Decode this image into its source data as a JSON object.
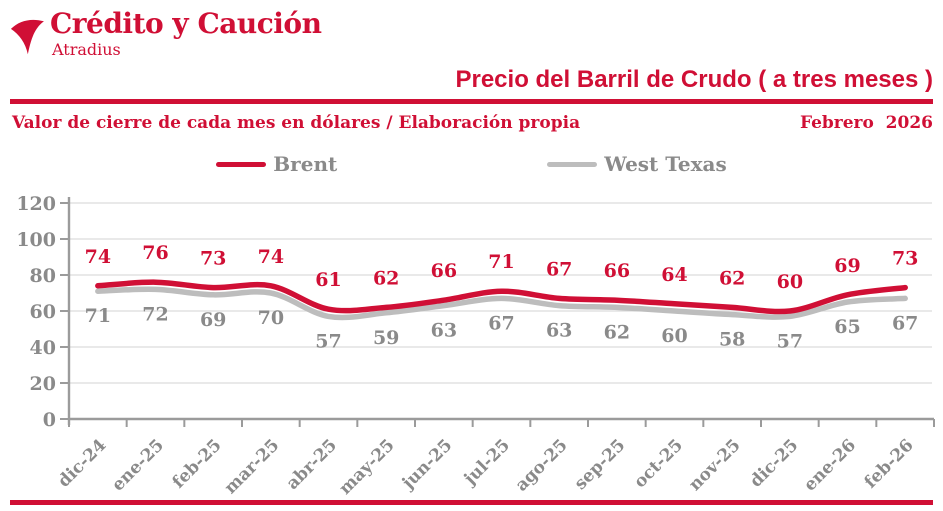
{
  "brand": {
    "name": "Crédito y Caución",
    "sub": "Atradius",
    "logo_icon": "bird-dart-icon"
  },
  "header": {
    "title": "Precio del Barril de Crudo ( a tres meses )",
    "subtitle": "Valor de cierre de cada mes en dólares / Elaboración propia",
    "date": "Febrero  2026"
  },
  "colors": {
    "red": "#d00f35",
    "gray_line": "#bdbdbd",
    "gray_text": "#8a8a8a",
    "grid": "#dcdcdc",
    "axis": "#9b9b9b"
  },
  "chart_data": {
    "type": "line",
    "title": "Precio del Barril de Crudo ( a tres meses )",
    "xlabel": "",
    "ylabel": "",
    "ylim": [
      0,
      120
    ],
    "ytick_step": 20,
    "grid": true,
    "legend_position": "top",
    "categories": [
      "dic-24",
      "ene-25",
      "feb-25",
      "mar-25",
      "abr-25",
      "may-25",
      "jun-25",
      "jul-25",
      "ago-25",
      "sep-25",
      "oct-25",
      "nov-25",
      "dic-25",
      "ene-26",
      "feb-26"
    ],
    "series": [
      {
        "name": "Brent",
        "color": "#d00f35",
        "values": [
          74,
          76,
          73,
          74,
          61,
          62,
          66,
          71,
          67,
          66,
          64,
          62,
          60,
          69,
          73
        ]
      },
      {
        "name": "West Texas",
        "color": "#bdbdbd",
        "values": [
          71,
          72,
          69,
          70,
          57,
          59,
          63,
          67,
          63,
          62,
          60,
          58,
          57,
          65,
          67
        ]
      }
    ]
  }
}
